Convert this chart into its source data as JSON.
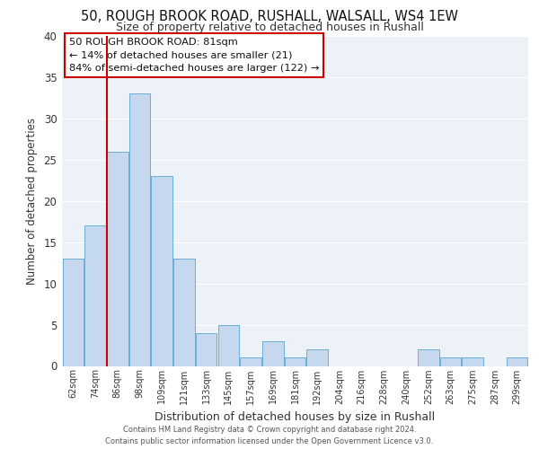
{
  "title1": "50, ROUGH BROOK ROAD, RUSHALL, WALSALL, WS4 1EW",
  "title2": "Size of property relative to detached houses in Rushall",
  "xlabel": "Distribution of detached houses by size in Rushall",
  "ylabel": "Number of detached properties",
  "bar_labels": [
    "62sqm",
    "74sqm",
    "86sqm",
    "98sqm",
    "109sqm",
    "121sqm",
    "133sqm",
    "145sqm",
    "157sqm",
    "169sqm",
    "181sqm",
    "192sqm",
    "204sqm",
    "216sqm",
    "228sqm",
    "240sqm",
    "252sqm",
    "263sqm",
    "275sqm",
    "287sqm",
    "299sqm"
  ],
  "bar_values": [
    13,
    17,
    26,
    33,
    23,
    13,
    4,
    5,
    1,
    3,
    1,
    2,
    0,
    0,
    0,
    0,
    2,
    1,
    1,
    0,
    1
  ],
  "bar_color": "#c5d8ed",
  "bar_edge_color": "#6aaed6",
  "reference_line_color": "#cc0000",
  "annotation_line1": "50 ROUGH BROOK ROAD: 81sqm",
  "annotation_line2": "← 14% of detached houses are smaller (21)",
  "annotation_line3": "84% of semi-detached houses are larger (122) →",
  "ylim": [
    0,
    40
  ],
  "yticks": [
    0,
    5,
    10,
    15,
    20,
    25,
    30,
    35,
    40
  ],
  "footer_line1": "Contains HM Land Registry data © Crown copyright and database right 2024.",
  "footer_line2": "Contains public sector information licensed under the Open Government Licence v3.0.",
  "bg_color": "#edf2f9",
  "grid_color": "#ffffff"
}
